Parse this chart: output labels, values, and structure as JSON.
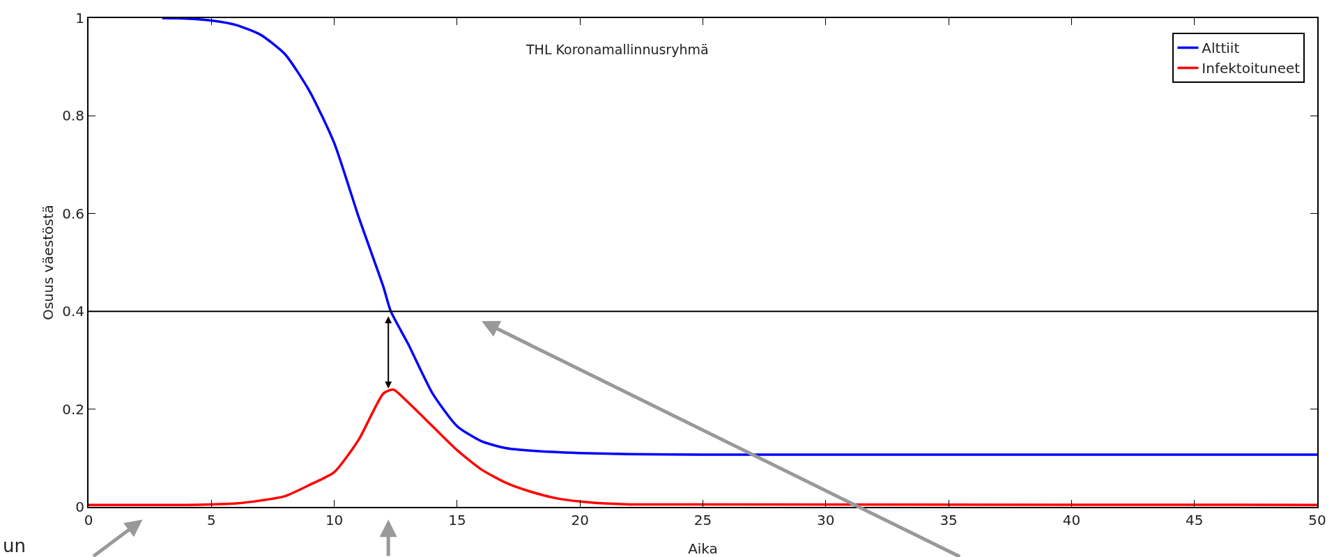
{
  "chart_data": {
    "type": "line",
    "xlabel": "Aika",
    "ylabel": "Osuus väestöstä",
    "xlim": [
      0,
      50
    ],
    "ylim": [
      0,
      1
    ],
    "xticks": [
      0,
      5,
      10,
      15,
      20,
      25,
      30,
      35,
      40,
      45,
      50
    ],
    "yticks": [
      0,
      0.2,
      0.4,
      0.6,
      0.8,
      1
    ],
    "grid": false,
    "legend": "top right",
    "line_style": "solid",
    "marker": "none",
    "annotations": [
      "THL Koronamallinnusryhmä",
      "un"
    ],
    "ref_lines": [
      {
        "axis": "y",
        "value": 0.4,
        "color": "#000000"
      }
    ],
    "series": [
      {
        "name": "Alttiit",
        "color": "#0000ff",
        "x": [
          3,
          4,
          5,
          6,
          7,
          8,
          9,
          10,
          11,
          12,
          12.3,
          13,
          14,
          15,
          16,
          17,
          18,
          20,
          22,
          25,
          50
        ],
        "values": [
          1,
          0.999,
          0.995,
          0.986,
          0.966,
          0.926,
          0.85,
          0.744,
          0.592,
          0.45,
          0.4,
          0.334,
          0.232,
          0.165,
          0.134,
          0.12,
          0.115,
          0.11,
          0.108,
          0.107,
          0.107
        ]
      },
      {
        "name": "Infektoituneet",
        "color": "#ff0000",
        "x": [
          0,
          4,
          5,
          6,
          7,
          8,
          9,
          10,
          11,
          12,
          12.4,
          13,
          14,
          15,
          16,
          17,
          18,
          19,
          20,
          21,
          22,
          50
        ],
        "values": [
          0.004,
          0.004,
          0.005,
          0.007,
          0.013,
          0.022,
          0.045,
          0.071,
          0.138,
          0.232,
          0.24,
          0.214,
          0.165,
          0.116,
          0.076,
          0.049,
          0.031,
          0.018,
          0.011,
          0.007,
          0.005,
          0.004
        ]
      }
    ]
  }
}
